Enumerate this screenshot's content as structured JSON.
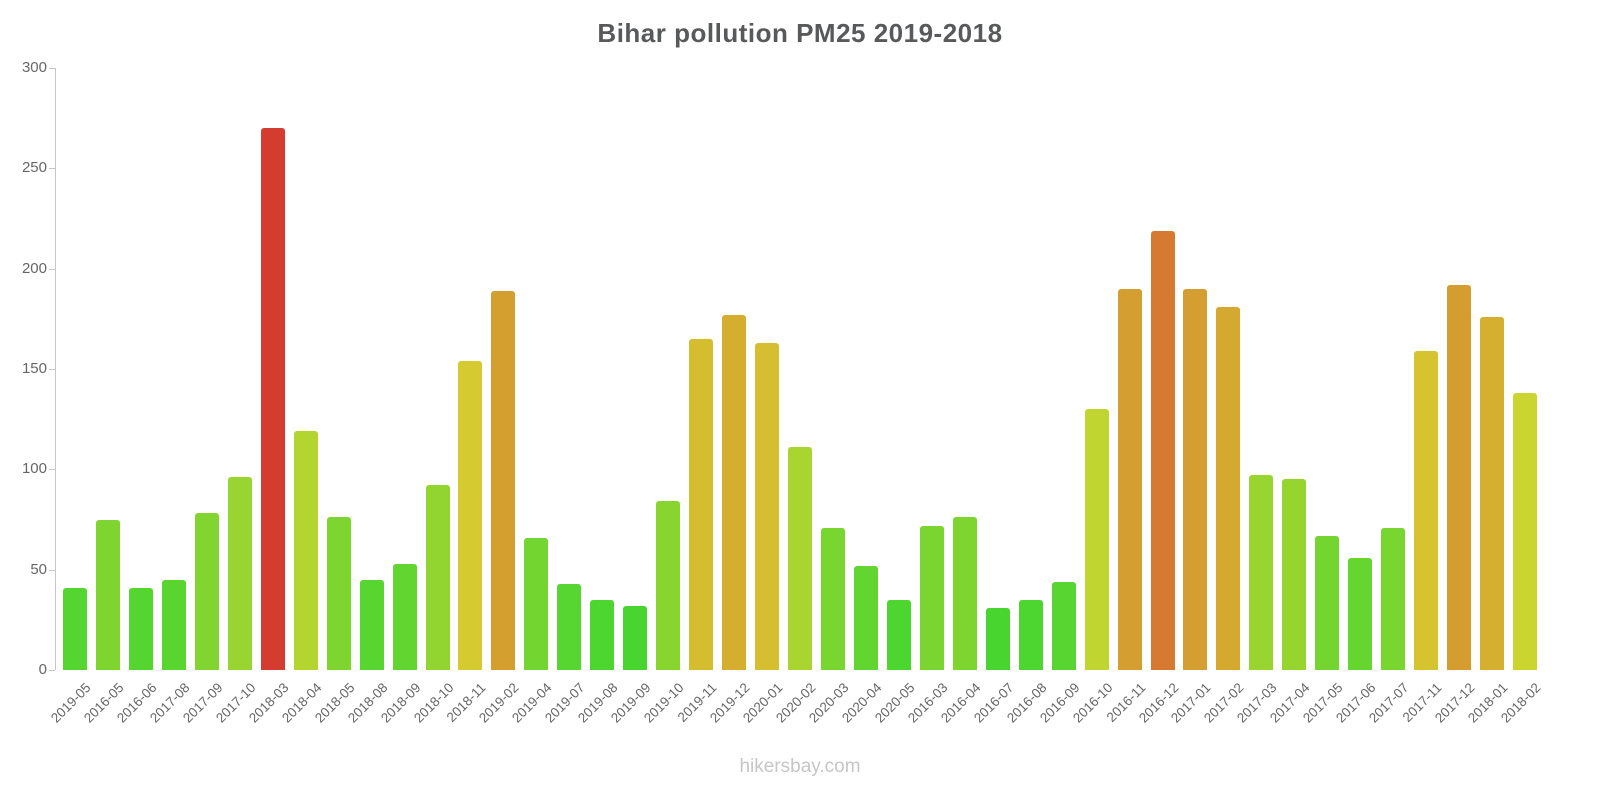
{
  "title": "Bihar pollution PM25 2019-2018",
  "watermark": "hikersbay.com",
  "chart_data": {
    "type": "bar",
    "title": "Bihar pollution PM25 2019-2018",
    "xlabel": "",
    "ylabel": "",
    "ylim": [
      0,
      300
    ],
    "yticks": [
      0,
      50,
      100,
      150,
      200,
      250,
      300
    ],
    "grid": false,
    "legend": false,
    "categories": [
      "2019-05",
      "2016-05",
      "2016-06",
      "2017-08",
      "2017-09",
      "2017-10",
      "2018-03",
      "2018-04",
      "2018-05",
      "2018-08",
      "2018-09",
      "2018-10",
      "2018-11",
      "2019-02",
      "2019-04",
      "2019-07",
      "2019-08",
      "2019-09",
      "2019-10",
      "2019-11",
      "2019-12",
      "2020-01",
      "2020-02",
      "2020-03",
      "2020-04",
      "2020-05",
      "2016-03",
      "2016-04",
      "2016-07",
      "2016-08",
      "2016-09",
      "2016-10",
      "2016-11",
      "2016-12",
      "2017-01",
      "2017-02",
      "2017-03",
      "2017-04",
      "2017-05",
      "2017-06",
      "2017-07",
      "2017-11",
      "2017-12",
      "2018-01",
      "2018-02"
    ],
    "values": [
      41,
      75,
      41,
      45,
      78,
      96,
      270,
      119,
      76,
      45,
      53,
      92,
      154,
      189,
      66,
      43,
      35,
      32,
      84,
      165,
      177,
      163,
      111,
      71,
      52,
      35,
      72,
      76,
      31,
      35,
      44,
      130,
      190,
      219,
      190,
      181,
      97,
      95,
      67,
      56,
      71,
      159,
      192,
      176,
      138
    ],
    "color_scale": {
      "description": "green-to-red by value",
      "hue_start": 125,
      "hue_end": 0,
      "value_at_hue_end": 280,
      "saturation": "66%",
      "lightness": "51%",
      "example_low_hex": "#35d23a",
      "example_mid_hex": "#d2c42d",
      "example_high_hex": "#df4030"
    }
  },
  "layout_text": {
    "note": ""
  }
}
